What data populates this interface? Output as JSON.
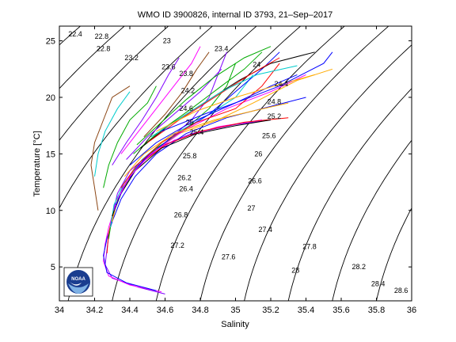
{
  "chart_data": {
    "type": "line",
    "title": "WMO ID 3900826, internal ID 3793, 21–Sep–2017",
    "xlabel": "Salinity",
    "ylabel": "Temperature [°C]",
    "xlim": [
      34,
      36
    ],
    "ylim": [
      2,
      26.3
    ],
    "xticks": [
      "34",
      "34.2",
      "34.4",
      "34.6",
      "34.8",
      "35",
      "35.2",
      "35.4",
      "35.6",
      "35.8",
      "36"
    ],
    "yticks": [
      "5",
      "10",
      "15",
      "20",
      "25"
    ],
    "grid": false,
    "logo_text": "NOAA",
    "density_contours": [
      {
        "label": "22.4",
        "x": 34.09,
        "y": 25.6
      },
      {
        "label": "22.8",
        "x": 34.25,
        "y": 24.3
      },
      {
        "label": "22.8",
        "x": 34.24,
        "y": 25.4
      },
      {
        "label": "23",
        "x": 34.61,
        "y": 25.0
      },
      {
        "label": "23.2",
        "x": 34.41,
        "y": 23.5
      },
      {
        "label": "23.4",
        "x": 34.92,
        "y": 24.3
      },
      {
        "label": "23.6",
        "x": 34.62,
        "y": 22.7
      },
      {
        "label": "23.8",
        "x": 34.72,
        "y": 22.1
      },
      {
        "label": "24",
        "x": 35.12,
        "y": 22.9
      },
      {
        "label": "24.2",
        "x": 34.73,
        "y": 20.6
      },
      {
        "label": "24.4",
        "x": 35.26,
        "y": 21.2
      },
      {
        "label": "24.6",
        "x": 34.72,
        "y": 19.0
      },
      {
        "label": "24.8",
        "x": 35.22,
        "y": 19.6
      },
      {
        "label": "25",
        "x": 34.74,
        "y": 17.8
      },
      {
        "label": "25.2",
        "x": 35.22,
        "y": 18.3
      },
      {
        "label": "25.4",
        "x": 34.78,
        "y": 16.9
      },
      {
        "label": "25.6",
        "x": 35.19,
        "y": 16.6
      },
      {
        "label": "25.8",
        "x": 34.74,
        "y": 14.8
      },
      {
        "label": "26",
        "x": 35.13,
        "y": 15.0
      },
      {
        "label": "26.2",
        "x": 34.71,
        "y": 12.9
      },
      {
        "label": "26.4",
        "x": 34.72,
        "y": 11.9
      },
      {
        "label": "26.6",
        "x": 35.11,
        "y": 12.6
      },
      {
        "label": "26.8",
        "x": 34.69,
        "y": 9.6
      },
      {
        "label": "27",
        "x": 35.09,
        "y": 10.2
      },
      {
        "label": "27.2",
        "x": 34.67,
        "y": 6.9
      },
      {
        "label": "27.4",
        "x": 35.17,
        "y": 8.3
      },
      {
        "label": "27.6",
        "x": 34.96,
        "y": 5.9
      },
      {
        "label": "27.8",
        "x": 35.42,
        "y": 6.8
      },
      {
        "label": "28",
        "x": 35.34,
        "y": 4.7
      },
      {
        "label": "28.2",
        "x": 35.7,
        "y": 5.0
      },
      {
        "label": "28.4",
        "x": 35.81,
        "y": 3.5
      },
      {
        "label": "28.6",
        "x": 35.94,
        "y": 2.9
      }
    ],
    "series": [
      {
        "color": "#7f00ff",
        "points": [
          [
            34.6,
            2.6
          ],
          [
            34.45,
            3.2
          ],
          [
            34.3,
            4.0
          ],
          [
            34.26,
            5.2
          ],
          [
            34.27,
            6.5
          ],
          [
            34.28,
            7.8
          ],
          [
            34.3,
            9.5
          ],
          [
            34.33,
            11.5
          ],
          [
            34.4,
            13.5
          ],
          [
            34.55,
            15.5
          ],
          [
            34.75,
            16.8
          ],
          [
            35.0,
            17.6
          ],
          [
            35.2,
            18.0
          ]
        ]
      },
      {
        "color": "#ff00ff",
        "points": [
          [
            34.58,
            2.8
          ],
          [
            34.4,
            3.4
          ],
          [
            34.28,
            4.2
          ],
          [
            34.25,
            5.5
          ],
          [
            34.26,
            7.0
          ],
          [
            34.28,
            8.5
          ],
          [
            34.32,
            10.5
          ],
          [
            34.38,
            12.5
          ],
          [
            34.48,
            14.5
          ],
          [
            34.65,
            16.2
          ],
          [
            34.9,
            17.4
          ],
          [
            35.15,
            18.0
          ]
        ]
      },
      {
        "color": "#0000ff",
        "points": [
          [
            34.55,
            2.9
          ],
          [
            34.38,
            3.6
          ],
          [
            34.27,
            4.5
          ],
          [
            34.25,
            6.0
          ],
          [
            34.27,
            7.5
          ],
          [
            34.3,
            9.0
          ],
          [
            34.35,
            11.0
          ],
          [
            34.43,
            13.0
          ],
          [
            34.55,
            15.0
          ],
          [
            34.72,
            16.8
          ],
          [
            34.95,
            18.2
          ],
          [
            35.2,
            19.2
          ],
          [
            35.4,
            20.0
          ]
        ]
      },
      {
        "color": "#ff0000",
        "points": [
          [
            34.27,
            6.2
          ],
          [
            34.28,
            8.0
          ],
          [
            34.31,
            10.0
          ],
          [
            34.36,
            12.0
          ],
          [
            34.45,
            14.0
          ],
          [
            34.6,
            15.8
          ],
          [
            34.8,
            17.0
          ],
          [
            35.05,
            17.8
          ],
          [
            35.3,
            18.2
          ]
        ]
      },
      {
        "color": "#00aa00",
        "points": [
          [
            34.28,
            7.5
          ],
          [
            34.3,
            9.5
          ],
          [
            34.35,
            11.5
          ],
          [
            34.42,
            13.5
          ],
          [
            34.55,
            15.5
          ],
          [
            34.7,
            17.0
          ],
          [
            34.85,
            19.0
          ],
          [
            34.95,
            21.0
          ],
          [
            35.0,
            23.0
          ]
        ]
      },
      {
        "color": "#00cccc",
        "points": [
          [
            34.29,
            8.5
          ],
          [
            34.31,
            10.5
          ],
          [
            34.37,
            12.5
          ],
          [
            34.47,
            14.5
          ],
          [
            34.62,
            16.5
          ],
          [
            34.8,
            18.0
          ],
          [
            35.0,
            20.0
          ],
          [
            35.1,
            22.0
          ]
        ]
      },
      {
        "color": "#ffaa00",
        "points": [
          [
            34.3,
            9.0
          ],
          [
            34.33,
            11.0
          ],
          [
            34.4,
            13.0
          ],
          [
            34.52,
            15.0
          ],
          [
            34.68,
            16.8
          ],
          [
            34.9,
            18.0
          ],
          [
            35.1,
            19.5
          ],
          [
            35.35,
            21.5
          ],
          [
            35.55,
            22.5
          ]
        ]
      },
      {
        "color": "#000000",
        "points": [
          [
            34.3,
            9.5
          ],
          [
            34.35,
            11.5
          ],
          [
            34.43,
            13.5
          ],
          [
            34.58,
            15.5
          ],
          [
            34.78,
            16.8
          ],
          [
            35.0,
            17.5
          ],
          [
            35.2,
            18.0
          ]
        ]
      },
      {
        "color": "#8b4513",
        "points": [
          [
            34.22,
            10.0
          ],
          [
            34.2,
            12.0
          ],
          [
            34.18,
            14.0
          ],
          [
            34.2,
            16.0
          ],
          [
            34.25,
            18.0
          ],
          [
            34.3,
            20.0
          ],
          [
            34.4,
            21.0
          ]
        ]
      },
      {
        "color": "#7f00ff",
        "points": [
          [
            34.31,
            10.0
          ],
          [
            34.36,
            12.0
          ],
          [
            34.45,
            14.0
          ],
          [
            34.6,
            16.0
          ],
          [
            34.75,
            18.0
          ],
          [
            34.85,
            20.0
          ],
          [
            34.9,
            22.0
          ],
          [
            34.95,
            24.0
          ]
        ]
      },
      {
        "color": "#0000ff",
        "points": [
          [
            34.32,
            10.5
          ],
          [
            34.38,
            12.5
          ],
          [
            34.48,
            14.5
          ],
          [
            34.64,
            16.5
          ],
          [
            34.85,
            18.5
          ],
          [
            35.0,
            20.5
          ],
          [
            35.15,
            22.5
          ],
          [
            35.25,
            24.0
          ]
        ]
      },
      {
        "color": "#ff00ff",
        "points": [
          [
            34.33,
            11.0
          ],
          [
            34.4,
            13.0
          ],
          [
            34.52,
            15.0
          ],
          [
            34.7,
            17.0
          ],
          [
            34.95,
            19.0
          ],
          [
            35.2,
            20.5
          ],
          [
            35.4,
            22.0
          ]
        ]
      },
      {
        "color": "#00aa00",
        "points": [
          [
            34.25,
            12.0
          ],
          [
            34.28,
            14.0
          ],
          [
            34.33,
            16.0
          ],
          [
            34.4,
            18.0
          ],
          [
            34.5,
            19.5
          ],
          [
            34.55,
            21.0
          ]
        ]
      },
      {
        "color": "#ff0000",
        "points": [
          [
            34.35,
            12.0
          ],
          [
            34.44,
            14.0
          ],
          [
            34.58,
            16.0
          ],
          [
            34.78,
            17.8
          ],
          [
            35.0,
            19.0
          ],
          [
            35.15,
            21.0
          ],
          [
            35.25,
            23.0
          ]
        ]
      },
      {
        "color": "#00cccc",
        "points": [
          [
            34.2,
            13.0
          ],
          [
            34.22,
            15.0
          ],
          [
            34.26,
            17.0
          ],
          [
            34.33,
            19.0
          ],
          [
            34.4,
            20.5
          ]
        ]
      },
      {
        "color": "#ffaa00",
        "points": [
          [
            34.37,
            13.0
          ],
          [
            34.48,
            15.0
          ],
          [
            34.65,
            16.8
          ],
          [
            34.88,
            18.0
          ],
          [
            35.1,
            18.8
          ],
          [
            35.3,
            19.5
          ]
        ]
      },
      {
        "color": "#7f00ff",
        "points": [
          [
            34.3,
            14.0
          ],
          [
            34.38,
            16.0
          ],
          [
            34.47,
            18.0
          ],
          [
            34.55,
            20.0
          ],
          [
            34.62,
            22.0
          ],
          [
            34.68,
            23.5
          ]
        ]
      },
      {
        "color": "#0000ff",
        "points": [
          [
            34.4,
            14.0
          ],
          [
            34.55,
            16.0
          ],
          [
            34.75,
            17.8
          ],
          [
            35.0,
            19.5
          ],
          [
            35.2,
            21.0
          ],
          [
            35.35,
            22.0
          ]
        ]
      },
      {
        "color": "#ff00ff",
        "points": [
          [
            34.35,
            15.0
          ],
          [
            34.45,
            17.0
          ],
          [
            34.55,
            19.0
          ],
          [
            34.65,
            21.0
          ],
          [
            34.75,
            23.0
          ],
          [
            34.8,
            24.5
          ]
        ]
      },
      {
        "color": "#00aa00",
        "points": [
          [
            34.42,
            15.0
          ],
          [
            34.57,
            17.0
          ],
          [
            34.75,
            19.0
          ],
          [
            34.92,
            21.0
          ],
          [
            35.05,
            22.5
          ],
          [
            35.15,
            24.0
          ]
        ]
      },
      {
        "color": "#000000",
        "points": [
          [
            34.46,
            15.5
          ],
          [
            34.62,
            17.5
          ],
          [
            34.82,
            19.5
          ],
          [
            35.02,
            21.5
          ],
          [
            35.2,
            23.0
          ],
          [
            35.45,
            24.0
          ]
        ]
      },
      {
        "color": "#ff0000",
        "points": [
          [
            34.5,
            16.0
          ],
          [
            34.68,
            18.0
          ],
          [
            34.88,
            20.0
          ],
          [
            35.08,
            22.0
          ],
          [
            35.25,
            23.5
          ]
        ]
      },
      {
        "color": "#00cccc",
        "points": [
          [
            34.52,
            16.5
          ],
          [
            34.72,
            18.5
          ],
          [
            34.92,
            20.5
          ],
          [
            35.12,
            22.0
          ],
          [
            35.35,
            22.8
          ]
        ]
      },
      {
        "color": "#ffaa00",
        "points": [
          [
            34.55,
            17.0
          ],
          [
            34.78,
            18.8
          ],
          [
            35.0,
            20.0
          ],
          [
            35.22,
            21.0
          ],
          [
            35.45,
            22.0
          ]
        ]
      },
      {
        "color": "#8b4513",
        "points": [
          [
            34.48,
            16.5
          ],
          [
            34.6,
            18.5
          ],
          [
            34.7,
            20.5
          ],
          [
            34.78,
            22.5
          ],
          [
            34.85,
            24.0
          ]
        ]
      },
      {
        "color": "#0000ff",
        "points": [
          [
            34.58,
            17.0
          ],
          [
            34.82,
            18.5
          ],
          [
            35.05,
            19.8
          ],
          [
            35.25,
            21.0
          ],
          [
            35.5,
            23.0
          ],
          [
            35.55,
            24.0
          ]
        ]
      },
      {
        "color": "#7f00ff",
        "points": [
          [
            34.38,
            14.5
          ],
          [
            34.5,
            16.5
          ],
          [
            34.65,
            18.5
          ],
          [
            34.8,
            20.5
          ],
          [
            34.92,
            22.5
          ]
        ]
      },
      {
        "color": "#00aa00",
        "points": [
          [
            34.44,
            15.8
          ],
          [
            34.58,
            17.8
          ],
          [
            34.72,
            19.8
          ],
          [
            34.88,
            21.8
          ],
          [
            35.05,
            23.5
          ],
          [
            35.2,
            24.5
          ]
        ]
      }
    ]
  }
}
